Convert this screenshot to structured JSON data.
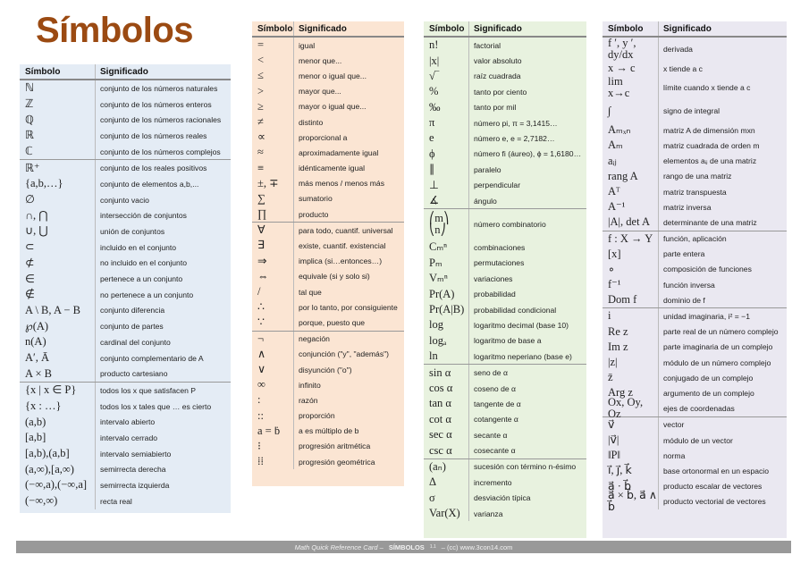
{
  "title": "Símbolos",
  "header": {
    "symbol": "Símbolo",
    "meaning": "Significado"
  },
  "colors": {
    "title": "#9b4a12",
    "col1_bg": "#e4ecf5",
    "col2_bg": "#fbe5d3",
    "col3_bg": "#e8f2df",
    "col4_bg": "#eae8f1",
    "footer_bg": "#999999"
  },
  "columns": [
    {
      "groups": [
        [
          [
            "ℕ",
            "conjunto de los números naturales"
          ],
          [
            "ℤ",
            "conjunto de los números enteros"
          ],
          [
            "ℚ",
            "conjunto de los números racionales"
          ],
          [
            "ℝ",
            "conjunto de los números reales"
          ],
          [
            "ℂ",
            "conjunto de los números complejos"
          ]
        ],
        [
          [
            "ℝ⁺",
            "conjunto de los reales positivos"
          ],
          [
            "{a,b,…}",
            "conjunto de elementos a,b,..."
          ],
          [
            "∅",
            "conjunto vacio"
          ],
          [
            "∩, ⋂",
            "intersección de conjuntos"
          ],
          [
            "∪, ⋃",
            "unión de conjuntos"
          ],
          [
            "⊂",
            "incluido en el conjunto"
          ],
          [
            "⊄",
            "no incluido en el conjunto"
          ],
          [
            "∈",
            "pertenece a un conjunto"
          ],
          [
            "∉",
            "no pertenece a un conjunto"
          ],
          [
            "A \\ B, A − B",
            "conjunto diferencia"
          ],
          [
            "℘(A)",
            "conjunto de partes"
          ],
          [
            "n(A)",
            "cardinal del conjunto"
          ],
          [
            "A′, Ā",
            "conjunto complementario de A"
          ],
          [
            "A × B",
            "producto cartesiano"
          ]
        ],
        [
          [
            "{x | x ∈ P}",
            "todos los x que satisfacen P"
          ],
          [
            "{x : …}",
            "todos los x tales que … es cierto"
          ],
          [
            "(a,b)",
            "intervalo abierto"
          ],
          [
            "[a,b]",
            "intervalo cerrado"
          ],
          [
            "[a,b),(a,b]",
            "intervalo semiabierto"
          ],
          [
            "(a,∞),[a,∞)",
            "semirrecta derecha"
          ],
          [
            "(−∞,a),(−∞,a]",
            "semirrecta izquierda"
          ],
          [
            "(−∞,∞)",
            "recta real"
          ]
        ]
      ]
    },
    {
      "groups": [
        [
          [
            "=",
            "igual"
          ],
          [
            "<",
            "menor que..."
          ],
          [
            "≤",
            "menor o igual que..."
          ],
          [
            ">",
            "mayor que..."
          ],
          [
            "≥",
            "mayor o igual que..."
          ],
          [
            "≠",
            "distinto"
          ],
          [
            "∝",
            "proporcional a"
          ],
          [
            "≈",
            "aproximadamente igual"
          ],
          [
            "≡",
            "idénticamente igual"
          ],
          [
            "±, ∓",
            "más menos / menos más"
          ],
          [
            "∑",
            "sumatorio"
          ],
          [
            "∏",
            "producto"
          ]
        ],
        [
          [
            "∀",
            "para todo, cuantif. universal"
          ],
          [
            "∃",
            "existe, cuantif. existencial"
          ],
          [
            "⇒",
            "implica (si…entonces…)"
          ],
          [
            "⇔",
            "equivale (si y solo si)"
          ],
          [
            "/",
            "tal que"
          ],
          [
            "∴",
            "por lo tanto, por consiguiente"
          ],
          [
            "∵",
            "porque, puesto que"
          ]
        ],
        [
          [
            "¬",
            "negación"
          ],
          [
            "∧",
            "conjunción  (\"y\", \"además\")"
          ],
          [
            "∨",
            "disyunción (\"o\")"
          ],
          [
            "∞",
            "infinito"
          ],
          [
            ":",
            "razón"
          ],
          [
            "::",
            "proporción"
          ],
          [
            "a = ḃ",
            "a es múltiplo de b"
          ],
          [
            "⁝",
            "progresión aritmética"
          ],
          [
            "⁞⁞",
            "progresión geométrica"
          ]
        ]
      ]
    },
    {
      "groups": [
        [
          [
            "n!",
            "factorial"
          ],
          [
            "|x|",
            "valor absoluto"
          ],
          [
            "√‾",
            "raíz cuadrada"
          ],
          [
            "%",
            "tanto por ciento"
          ],
          [
            "‰",
            "tanto por mil"
          ],
          [
            "π",
            "número pi, π = 3,1415…"
          ],
          [
            "e",
            "número e, e = 2,7182…"
          ],
          [
            "ϕ",
            "número fi (áureo), ϕ = 1,6180…"
          ],
          [
            "∥",
            "paralelo"
          ],
          [
            "⊥",
            "perpendicular"
          ],
          [
            "∡",
            "ángulo"
          ]
        ],
        [
          [
            "⎛m⎞\n⎝n⎠",
            "número combinatorio"
          ],
          [
            "Cₘⁿ",
            "combinaciones"
          ],
          [
            "Pₘ",
            "permutaciones"
          ],
          [
            "Vₘⁿ",
            "variaciones"
          ],
          [
            "Pr(A)",
            "probabilidad"
          ],
          [
            "Pr(A|B)",
            "probabilidad condicional"
          ],
          [
            "log",
            "logaritmo decimal (base 10)"
          ],
          [
            "logₐ",
            "logaritmo de base a"
          ],
          [
            "ln",
            "logaritmo neperiano (base e)"
          ]
        ],
        [
          [
            "sin α",
            "seno de α"
          ],
          [
            "cos α",
            "coseno de α"
          ],
          [
            "tan α",
            "tangente de α"
          ],
          [
            "cot α",
            "cotangente α"
          ],
          [
            "sec α",
            "secante α"
          ],
          [
            "csc α",
            "cosecante α"
          ]
        ],
        [
          [
            "(aₙ)",
            "sucesión con término n-ésimo"
          ],
          [
            "Δ",
            "incremento"
          ],
          [
            "σ",
            "desviación típica"
          ],
          [
            "Var(X)",
            "varianza"
          ]
        ]
      ]
    },
    {
      "groups": [
        [
          [
            "f ′, y ′, dy/dx",
            "derivada"
          ],
          [
            "x → c",
            "x tiende a c"
          ],
          [
            "lim\nx→c",
            "límite cuando x tiende a c"
          ],
          [
            "∫",
            "signo de integral"
          ],
          [
            "Aₘₓₙ",
            "matriz A de dimensión mxn"
          ],
          [
            "Aₘ",
            "matriz cuadrada de orden m"
          ],
          [
            "aᵢⱼ",
            "elementos aᵢⱼ de una matriz"
          ],
          [
            "rang A",
            "rango de una matriz"
          ],
          [
            "Aᵀ",
            "matriz transpuesta"
          ],
          [
            "A⁻¹",
            "matriz inversa"
          ],
          [
            "|A|, det A",
            "determinante de una matriz"
          ]
        ],
        [
          [
            "f : X → Y",
            "función, aplicación"
          ],
          [
            "[x]",
            "parte entera"
          ],
          [
            "∘",
            "composición de funciones"
          ],
          [
            "f⁻¹",
            "función inversa"
          ],
          [
            "Dom f",
            "dominio de f"
          ]
        ],
        [
          [
            "i",
            "unidad imaginaria, i² = −1"
          ],
          [
            "Re z",
            "parte real de un número complejo"
          ],
          [
            "Im z",
            "parte imaginaria de un complejo"
          ],
          [
            "|z|",
            "módulo de un número complejo"
          ],
          [
            "z̄",
            "conjugado de un complejo"
          ],
          [
            "Arg z",
            "argumento de un complejo"
          ],
          [
            "Ox, Oy, Oz",
            "ejes de coordenadas"
          ]
        ],
        [
          [
            "v⃗",
            "vector"
          ],
          [
            "|v⃗|",
            "módulo de un vector"
          ],
          [
            "‖P‖",
            "norma"
          ],
          [
            "i⃗, j⃗, k⃗",
            "base ortonormal en un espacio"
          ],
          [
            "a⃗ · b⃗",
            "producto escalar de vectores"
          ],
          [
            "a⃗ × b⃗, a⃗ ∧ b⃗",
            "producto vectorial de vectores"
          ]
        ]
      ]
    }
  ],
  "footer": {
    "card": "Math Quick Reference Card –",
    "name": "SÍMBOLOS",
    "version": "1.1",
    "site": "–  (cc) www.3con14.com"
  }
}
